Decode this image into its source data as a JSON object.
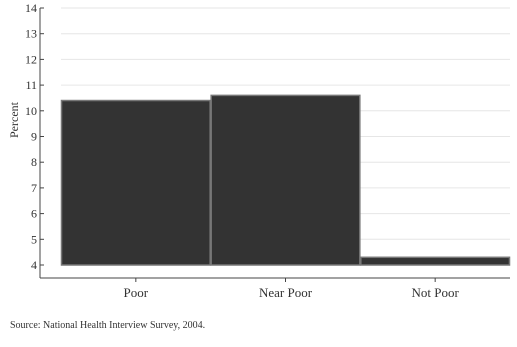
{
  "chart_data": {
    "type": "bar",
    "title": "",
    "xlabel": "",
    "ylabel": "Percent",
    "categories": [
      "Poor",
      "Near Poor",
      "Not Poor"
    ],
    "values": [
      10.4,
      10.6,
      4.3
    ],
    "ylim": [
      4,
      14
    ],
    "yticks": [
      4,
      5,
      6,
      7,
      8,
      9,
      10,
      11,
      12,
      13,
      14
    ],
    "grid": true,
    "legend": "none",
    "bar_color": "#333333",
    "bar_edge_color": "#777777"
  },
  "source_note": "Source: National Health Interview Survey, 2004."
}
